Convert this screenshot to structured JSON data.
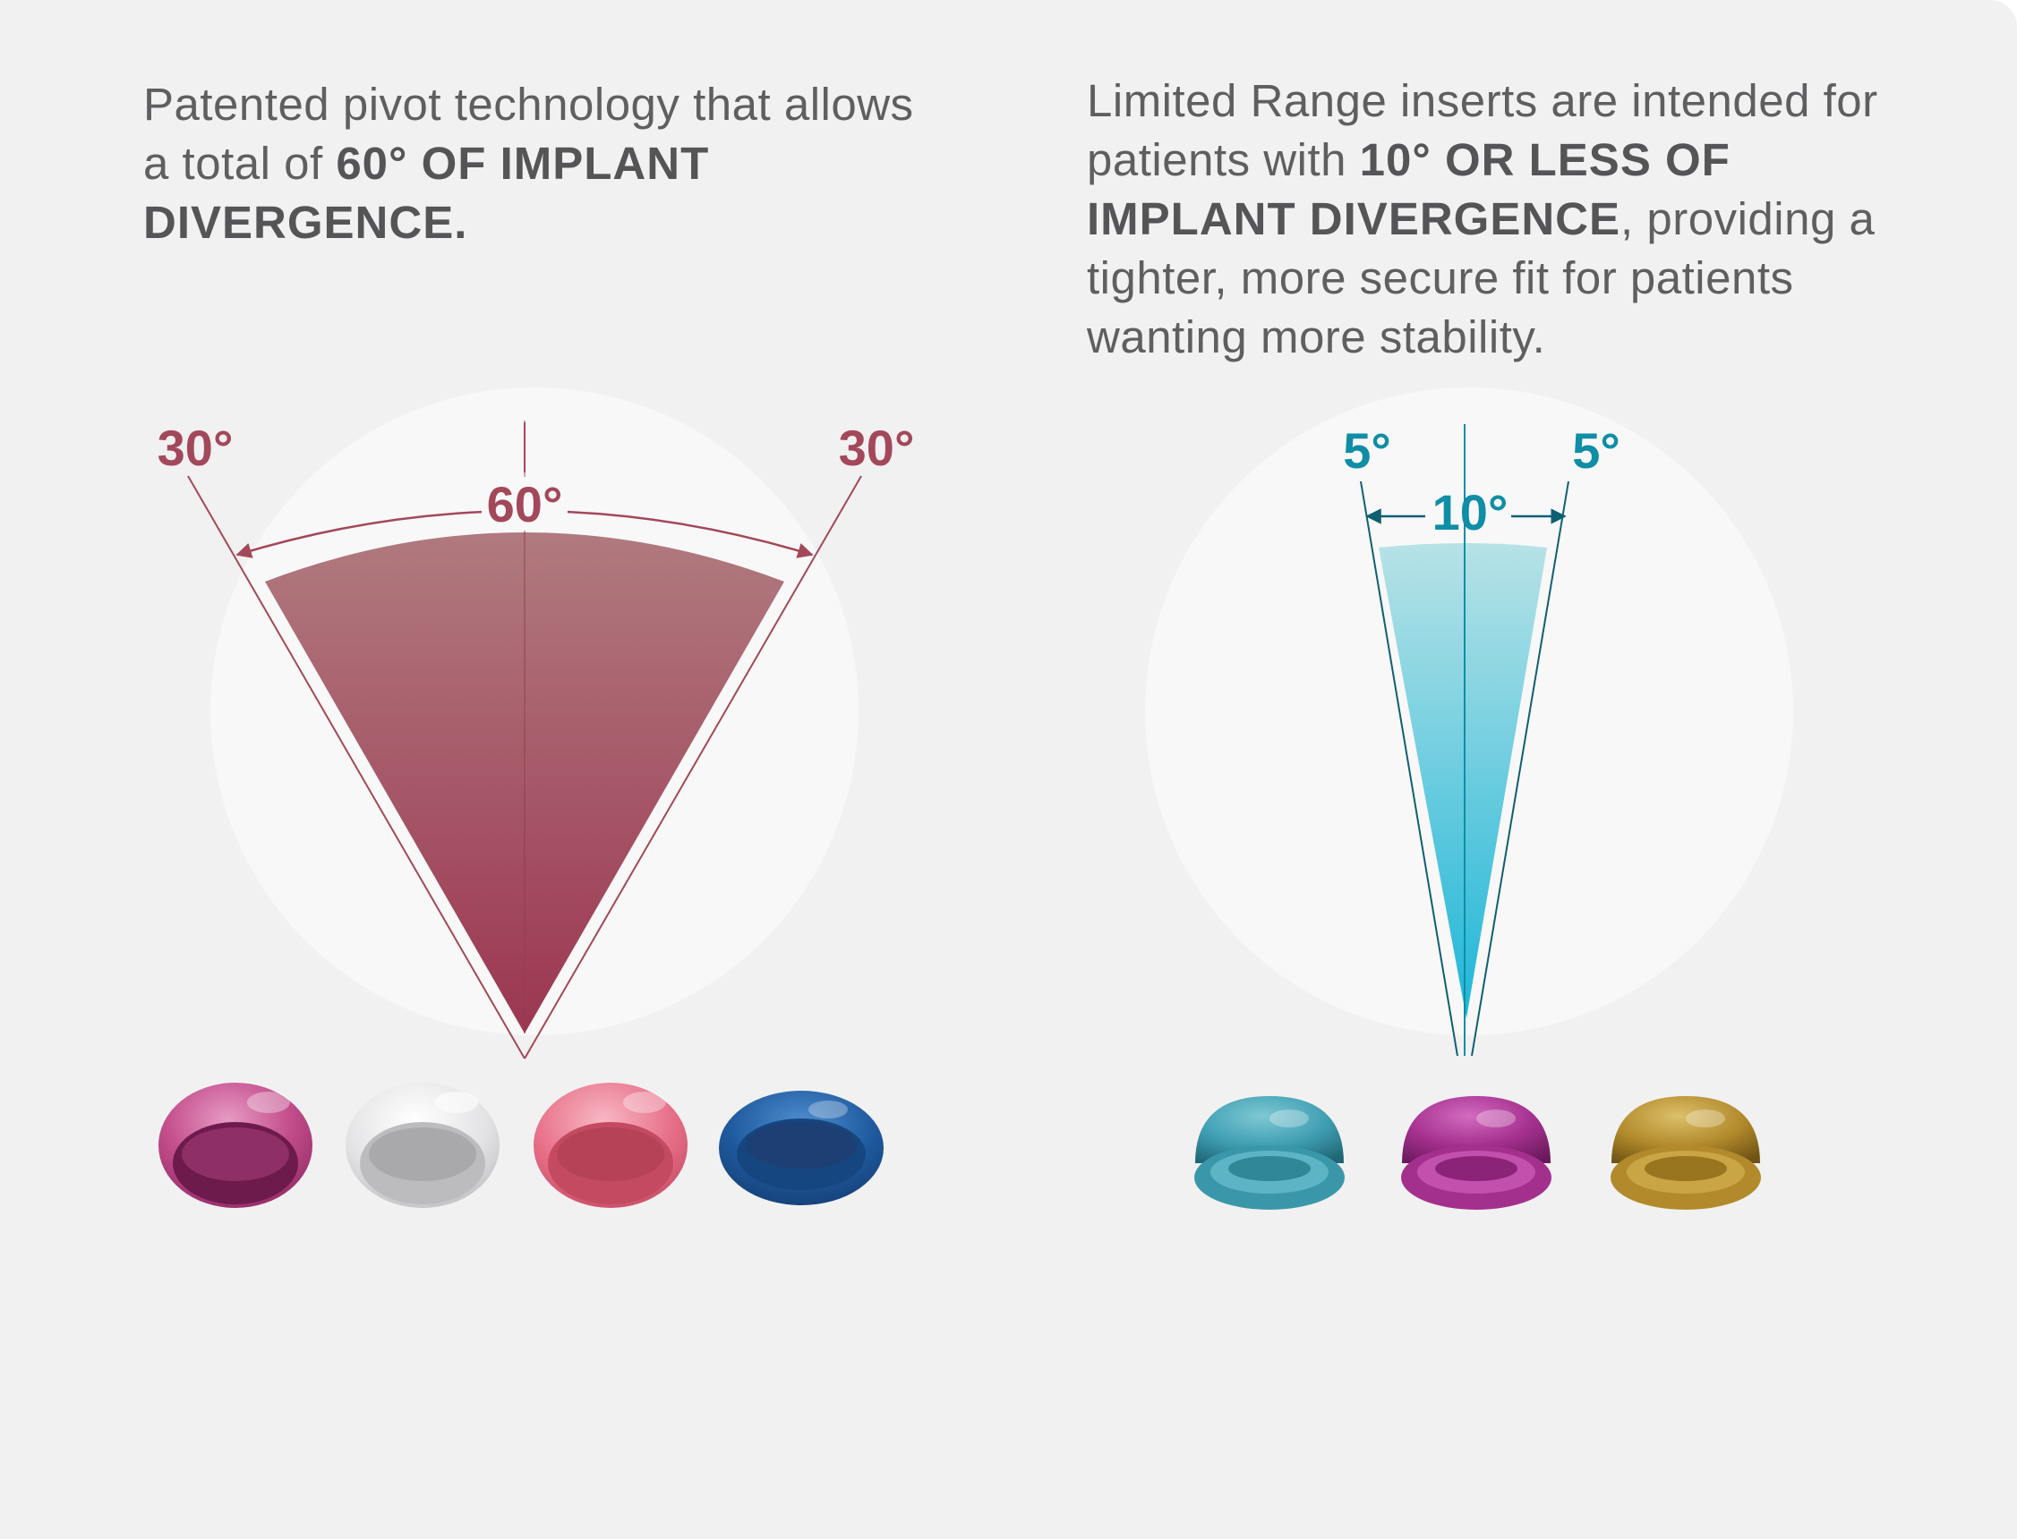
{
  "left_panel": {
    "caption_regular": "Patented pivot technology that allows a total of ",
    "caption_bold": "60° OF IMPLANT DIVERGENCE.",
    "angle_left": "30°",
    "angle_center": "60°",
    "angle_right": "30°",
    "accent_color": "#a3485a",
    "insert_colors": [
      "#c44f8d",
      "#d6d6d9",
      "#e8718a",
      "#1f5a9e"
    ]
  },
  "right_panel": {
    "caption_regular_1": "Limited Range inserts are intended for patients with ",
    "caption_bold": "10° OR LESS OF IMPLANT DIVERGENCE",
    "caption_regular_2": ", providing a tighter, more secure fit for patients wanting more stability.",
    "angle_left": "5°",
    "angle_center": "10°",
    "angle_right": "5°",
    "accent_color": "#0f8ea6",
    "insert_colors": [
      "#3f9fb2",
      "#a4308e",
      "#b28a2c"
    ]
  }
}
